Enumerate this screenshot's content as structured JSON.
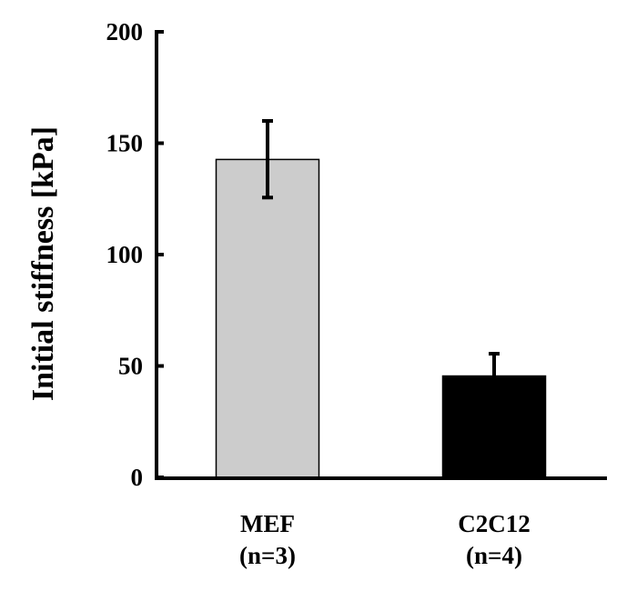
{
  "chart_data": {
    "type": "bar",
    "title": "",
    "xlabel": "",
    "ylabel": "Initial stiffness [kPa]",
    "ylim": [
      0,
      200
    ],
    "yticks": [
      0,
      50,
      100,
      150,
      200
    ],
    "grid": false,
    "categories": [
      "MEF",
      "C2C12"
    ],
    "category_sublabels": [
      "(n=3)",
      "(n=4)"
    ],
    "values": [
      142.7,
      45.5
    ],
    "error_upper": [
      160,
      55.5
    ],
    "error_lower": [
      125.6,
      null
    ],
    "bar_colors": [
      "#cccccc",
      "#000000"
    ]
  }
}
